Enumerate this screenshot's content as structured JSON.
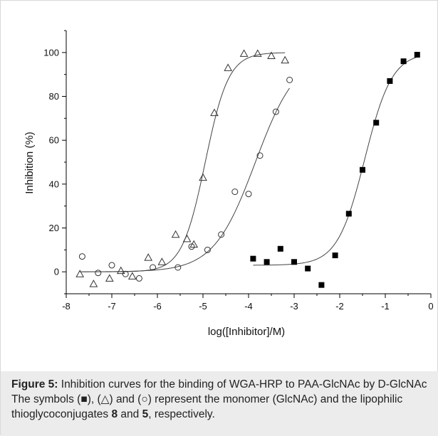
{
  "chart_data": {
    "type": "scatter",
    "xlabel": "log([Inhibitor]/M)",
    "ylabel": "Inhibition (%)",
    "xlim": [
      -8,
      0
    ],
    "ylim": [
      -10,
      110
    ],
    "x_ticks": [
      -8,
      -7,
      -6,
      -5,
      -4,
      -3,
      -2,
      -1,
      0
    ],
    "y_ticks": [
      0,
      20,
      40,
      60,
      80,
      100
    ],
    "grid": false,
    "legend": "none",
    "series": [
      {
        "marker": "triangle-open",
        "color": "#333333",
        "points": [
          [
            -7.7,
            -1
          ],
          [
            -7.4,
            -5.5
          ],
          [
            -7.05,
            -3
          ],
          [
            -6.8,
            0.5
          ],
          [
            -6.55,
            -2
          ],
          [
            -6.2,
            6.5
          ],
          [
            -5.9,
            4.5
          ],
          [
            -5.6,
            17
          ],
          [
            -5.35,
            15
          ],
          [
            -5.2,
            12.5
          ],
          [
            -5.0,
            43
          ],
          [
            -4.75,
            72.5
          ],
          [
            -4.45,
            93
          ],
          [
            -4.1,
            99.5
          ],
          [
            -3.8,
            99.5
          ],
          [
            -3.5,
            98.5
          ],
          [
            -3.2,
            96.5
          ]
        ],
        "fit": {
          "bottom": 0,
          "top": 100,
          "logIC50": -4.95,
          "hill": 1.7,
          "x_from": -7.7,
          "x_to": -3.2
        }
      },
      {
        "marker": "circle-open",
        "color": "#333333",
        "points": [
          [
            -7.65,
            7
          ],
          [
            -7.3,
            -0.5
          ],
          [
            -7.0,
            3
          ],
          [
            -6.7,
            -1
          ],
          [
            -6.4,
            -3
          ],
          [
            -6.1,
            2
          ],
          [
            -5.55,
            2
          ],
          [
            -5.25,
            11.5
          ],
          [
            -4.9,
            10
          ],
          [
            -4.6,
            17
          ],
          [
            -4.3,
            36.5
          ],
          [
            -4.0,
            35.5
          ],
          [
            -3.75,
            53
          ],
          [
            -3.4,
            73
          ],
          [
            -3.1,
            87.5
          ]
        ],
        "fit": {
          "bottom": 0,
          "top": 100,
          "logIC50": -3.85,
          "hill": 0.95,
          "x_from": -7.65,
          "x_to": -3.1
        }
      },
      {
        "marker": "square-filled",
        "color": "#000000",
        "points": [
          [
            -3.9,
            6
          ],
          [
            -3.6,
            4.5
          ],
          [
            -3.3,
            10.5
          ],
          [
            -3.0,
            4.5
          ],
          [
            -2.7,
            1.5
          ],
          [
            -2.4,
            -6
          ],
          [
            -2.1,
            7.5
          ],
          [
            -1.8,
            26.5
          ],
          [
            -1.5,
            46.5
          ],
          [
            -1.2,
            68
          ],
          [
            -0.9,
            87
          ],
          [
            -0.6,
            96
          ],
          [
            -0.3,
            99
          ]
        ],
        "fit": {
          "bottom": 3,
          "top": 100,
          "logIC50": -1.45,
          "hill": 1.45,
          "x_from": -3.9,
          "x_to": -0.3
        }
      }
    ]
  },
  "caption": {
    "label": "Figure 5:",
    "part1": " Inhibition curves for the binding of WGA-HRP to PAA-GlcNAc by D-GlcNAc The symbols (■), (△) and (○) represent the monomer (GlcNAc) and the lipophilic thioglycoconjugates ",
    "ref1": "8",
    "part2": " and ",
    "ref2": "5",
    "part3": ", respectively."
  }
}
